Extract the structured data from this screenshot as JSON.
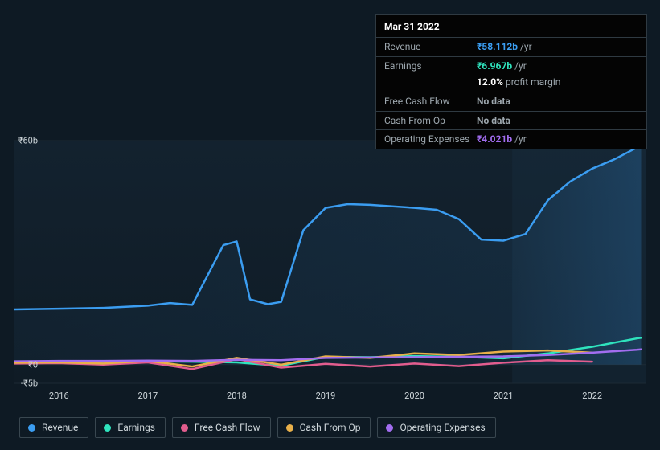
{
  "tooltip": {
    "date": "Mar 31 2022",
    "rows": [
      {
        "label": "Revenue",
        "value": "₹58.112b",
        "suffix": "/yr",
        "color": "#3b9df1"
      },
      {
        "label": "Earnings",
        "value": "₹6.967b",
        "suffix": "/yr",
        "color": "#2fe3bd"
      }
    ],
    "margin_row": {
      "label": "",
      "value": "12.0%",
      "suffix": "profit margin",
      "color": "#ffffff"
    },
    "rows2": [
      {
        "label": "Free Cash Flow",
        "value": "No data",
        "suffix": "",
        "color": "#9da7ae"
      },
      {
        "label": "Cash From Op",
        "value": "No data",
        "suffix": "",
        "color": "#9da7ae"
      },
      {
        "label": "Operating Expenses",
        "value": "₹4.021b",
        "suffix": "/yr",
        "color": "#a26df0"
      }
    ]
  },
  "chart": {
    "type": "line",
    "background_color": "#0e1a24",
    "plot_bg_top": "#101f2b",
    "plot_bg_bottom": "#101e29",
    "grid_color": "#1c2a35",
    "line_width": 2.5,
    "x_years": [
      2016,
      2017,
      2018,
      2019,
      2020,
      2021,
      2022
    ],
    "x_range": [
      2015.5,
      2022.6
    ],
    "y_ticks": [
      {
        "v": 60,
        "label": "₹60b"
      },
      {
        "v": 0,
        "label": "₹0"
      },
      {
        "v": -5,
        "label": "-₹5b"
      }
    ],
    "y_range": [
      -5,
      60
    ],
    "series": [
      {
        "name": "Revenue",
        "color": "#3b9df1",
        "fill_opacity": 0.1,
        "points": [
          [
            2015.5,
            14.8
          ],
          [
            2016.0,
            15.0
          ],
          [
            2016.5,
            15.2
          ],
          [
            2017.0,
            15.8
          ],
          [
            2017.25,
            16.5
          ],
          [
            2017.5,
            16.0
          ],
          [
            2017.85,
            32.0
          ],
          [
            2018.0,
            33.0
          ],
          [
            2018.15,
            17.5
          ],
          [
            2018.35,
            16.2
          ],
          [
            2018.5,
            16.8
          ],
          [
            2018.75,
            36.0
          ],
          [
            2019.0,
            42.0
          ],
          [
            2019.25,
            43.0
          ],
          [
            2019.5,
            42.8
          ],
          [
            2020.0,
            42.0
          ],
          [
            2020.25,
            41.5
          ],
          [
            2020.5,
            39.0
          ],
          [
            2020.75,
            33.5
          ],
          [
            2021.0,
            33.2
          ],
          [
            2021.25,
            35.0
          ],
          [
            2021.5,
            44.0
          ],
          [
            2021.75,
            49.0
          ],
          [
            2022.0,
            52.5
          ],
          [
            2022.25,
            55.0
          ],
          [
            2022.5,
            58.1
          ],
          [
            2022.55,
            59.0
          ]
        ],
        "end_marker": true
      },
      {
        "name": "Earnings",
        "color": "#2fe3bd",
        "fill_opacity": 0,
        "points": [
          [
            2015.5,
            0.8
          ],
          [
            2016.0,
            0.7
          ],
          [
            2016.5,
            0.8
          ],
          [
            2017.0,
            0.9
          ],
          [
            2017.5,
            0.8
          ],
          [
            2018.0,
            0.6
          ],
          [
            2018.5,
            -0.3
          ],
          [
            2019.0,
            2.1
          ],
          [
            2019.5,
            2.0
          ],
          [
            2020.0,
            2.3
          ],
          [
            2020.5,
            2.1
          ],
          [
            2021.0,
            1.7
          ],
          [
            2021.5,
            3.0
          ],
          [
            2022.0,
            4.8
          ],
          [
            2022.5,
            7.0
          ],
          [
            2022.55,
            7.2
          ]
        ]
      },
      {
        "name": "Free Cash Flow",
        "color": "#e25d8e",
        "fill_opacity": 0,
        "points": [
          [
            2015.5,
            0.3
          ],
          [
            2016.0,
            0.4
          ],
          [
            2016.5,
            0.0
          ],
          [
            2017.0,
            0.6
          ],
          [
            2017.5,
            -1.2
          ],
          [
            2018.0,
            1.5
          ],
          [
            2018.5,
            -0.8
          ],
          [
            2019.0,
            0.2
          ],
          [
            2019.5,
            -0.5
          ],
          [
            2020.0,
            0.3
          ],
          [
            2020.5,
            -0.4
          ],
          [
            2021.0,
            0.5
          ],
          [
            2021.5,
            1.2
          ],
          [
            2022.0,
            0.8
          ]
        ]
      },
      {
        "name": "Cash From Op",
        "color": "#e8b04a",
        "fill_opacity": 0,
        "points": [
          [
            2015.5,
            0.5
          ],
          [
            2016.0,
            0.6
          ],
          [
            2016.5,
            0.3
          ],
          [
            2017.0,
            1.0
          ],
          [
            2017.5,
            -0.5
          ],
          [
            2018.0,
            1.8
          ],
          [
            2018.5,
            0.0
          ],
          [
            2019.0,
            2.2
          ],
          [
            2019.5,
            1.8
          ],
          [
            2020.0,
            3.0
          ],
          [
            2020.5,
            2.6
          ],
          [
            2021.0,
            3.5
          ],
          [
            2021.5,
            3.8
          ],
          [
            2022.0,
            3.2
          ]
        ]
      },
      {
        "name": "Operating Expenses",
        "color": "#a26df0",
        "fill_opacity": 0,
        "points": [
          [
            2015.5,
            0.9
          ],
          [
            2016.0,
            1.0
          ],
          [
            2016.5,
            1.0
          ],
          [
            2017.0,
            1.1
          ],
          [
            2017.5,
            1.0
          ],
          [
            2018.0,
            1.3
          ],
          [
            2018.5,
            1.2
          ],
          [
            2019.0,
            1.8
          ],
          [
            2019.5,
            1.9
          ],
          [
            2020.0,
            2.0
          ],
          [
            2020.5,
            2.1
          ],
          [
            2021.0,
            2.2
          ],
          [
            2021.5,
            2.6
          ],
          [
            2022.0,
            3.2
          ],
          [
            2022.5,
            4.0
          ],
          [
            2022.55,
            4.1
          ]
        ]
      }
    ]
  },
  "legend": [
    {
      "label": "Revenue",
      "color": "#3b9df1"
    },
    {
      "label": "Earnings",
      "color": "#2fe3bd"
    },
    {
      "label": "Free Cash Flow",
      "color": "#e25d8e"
    },
    {
      "label": "Cash From Op",
      "color": "#e8b04a"
    },
    {
      "label": "Operating Expenses",
      "color": "#a26df0"
    }
  ],
  "axis_font_size": 11,
  "legend_font_size": 12,
  "tooltip_font_size": 12
}
